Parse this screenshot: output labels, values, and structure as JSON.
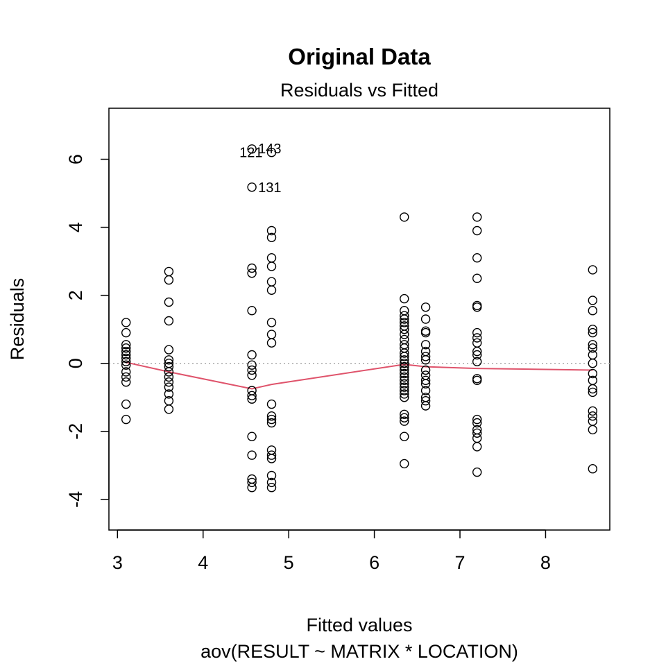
{
  "chart_data": {
    "type": "scatter",
    "title": "Original Data",
    "subtitle": "Residuals vs Fitted",
    "xlabel": "Fitted values",
    "caption": "aov(RESULT ~ MATRIX * LOCATION)",
    "ylabel": "Residuals",
    "xlim": [
      2.9,
      8.75
    ],
    "ylim": [
      -4.9,
      7.5
    ],
    "x_ticks": [
      3,
      4,
      5,
      6,
      7,
      8
    ],
    "y_ticks": [
      -4,
      -2,
      0,
      2,
      4,
      6
    ],
    "grid": false,
    "reference_line": {
      "y": 0,
      "style": "dotted",
      "color": "#aaaaaa"
    },
    "smooth_line": {
      "color": "#df536b",
      "points": [
        [
          3.1,
          0.03
        ],
        [
          3.6,
          -0.25
        ],
        [
          4.57,
          -0.75
        ],
        [
          4.8,
          -0.62
        ],
        [
          6.35,
          -0.03
        ],
        [
          6.6,
          -0.1
        ],
        [
          7.2,
          -0.15
        ],
        [
          8.55,
          -0.2
        ]
      ]
    },
    "point_labels": [
      {
        "text": "121",
        "x": 4.57,
        "y": 6.2,
        "side": "left"
      },
      {
        "text": "143",
        "x": 4.57,
        "y": 6.32,
        "side": "right"
      },
      {
        "text": "131",
        "x": 4.57,
        "y": 5.18,
        "side": "right"
      }
    ],
    "groups": [
      {
        "x": 3.1,
        "residuals": [
          1.2,
          0.9,
          0.55,
          0.45,
          0.35,
          0.25,
          0.15,
          0.05,
          -0.05,
          -0.25,
          -0.4,
          -0.55,
          -1.2,
          -1.65
        ]
      },
      {
        "x": 3.6,
        "residuals": [
          2.7,
          2.45,
          1.8,
          1.25,
          0.4,
          0.1,
          0.0,
          -0.1,
          -0.25,
          -0.4,
          -0.55,
          -0.7,
          -0.9,
          -1.1,
          -1.35
        ]
      },
      {
        "x": 4.57,
        "residuals": [
          6.3,
          5.18,
          2.8,
          2.65,
          1.55,
          0.25,
          -0.05,
          -0.2,
          -0.35,
          -0.8,
          -0.95,
          -1.05,
          -2.15,
          -2.7,
          -3.4,
          -3.5,
          -3.65
        ]
      },
      {
        "x": 4.8,
        "residuals": [
          6.2,
          3.9,
          3.7,
          3.1,
          2.85,
          2.4,
          2.15,
          1.2,
          0.85,
          0.6,
          -1.2,
          -1.55,
          -1.65,
          -1.75,
          -2.55,
          -2.7,
          -2.8,
          -3.3,
          -3.5,
          -3.65
        ]
      },
      {
        "x": 6.35,
        "residuals": [
          4.3,
          1.9,
          1.55,
          1.4,
          1.3,
          1.2,
          1.1,
          1.0,
          0.85,
          0.7,
          0.55,
          0.45,
          0.3,
          0.2,
          0.1,
          0.0,
          -0.1,
          -0.2,
          -0.3,
          -0.4,
          -0.5,
          -0.6,
          -0.7,
          -0.8,
          -0.9,
          -1.0,
          -1.5,
          -1.6,
          -1.7,
          -2.15,
          -2.95
        ]
      },
      {
        "x": 6.6,
        "residuals": [
          1.65,
          1.3,
          0.95,
          0.9,
          0.55,
          0.35,
          0.2,
          0.1,
          -0.2,
          -0.35,
          -0.5,
          -0.6,
          -0.8,
          -1.0,
          -1.1,
          -1.25
        ]
      },
      {
        "x": 7.2,
        "residuals": [
          4.3,
          3.9,
          3.1,
          2.5,
          1.7,
          1.65,
          0.9,
          0.75,
          0.6,
          0.35,
          0.25,
          0.05,
          -0.45,
          -0.5,
          -1.65,
          -1.75,
          -1.95,
          -2.05,
          -2.2,
          -2.45,
          -3.2
        ]
      },
      {
        "x": 8.55,
        "residuals": [
          2.75,
          1.85,
          1.55,
          1.0,
          0.9,
          0.55,
          0.45,
          0.25,
          0.0,
          -0.3,
          -0.5,
          -0.75,
          -0.85,
          -1.4,
          -1.55,
          -1.7,
          -1.95,
          -3.1
        ]
      }
    ]
  }
}
